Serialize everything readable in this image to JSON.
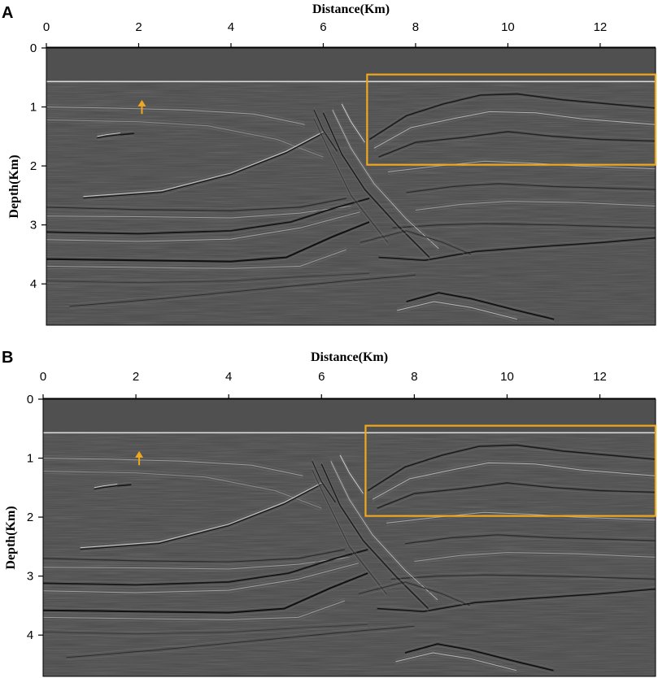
{
  "colors": {
    "highlight": "#f0a81c",
    "section_background": "#4a4a4a",
    "water_background": "#505050"
  },
  "chart_data": [
    {
      "type": "heatmap",
      "panel_label": "A",
      "title": "",
      "xlabel": "Distance(Km)",
      "ylabel": "Depth(Km)",
      "x_axis_position": "top",
      "xlim": [
        0,
        13.2
      ],
      "ylim": [
        4.7,
        0
      ],
      "xticks": [
        0,
        2,
        4,
        6,
        8,
        10,
        12
      ],
      "yticks": [
        0,
        1,
        2,
        3,
        4
      ],
      "colormap": "grayscale seismic amplitude",
      "seafloor_depth": 0.57,
      "highlight_box": {
        "x0": 6.95,
        "x1": 13.2,
        "y0": 0.45,
        "y1": 1.98
      },
      "arrow_annotation": {
        "x": 2.07,
        "y_tip": 0.88,
        "y_tail": 1.12
      }
    },
    {
      "type": "heatmap",
      "panel_label": "B",
      "title": "",
      "xlabel": "Distance(Km)",
      "ylabel": "Depth(Km)",
      "x_axis_position": "top",
      "xlim": [
        0,
        13.2
      ],
      "ylim": [
        4.7,
        0
      ],
      "xticks": [
        0,
        2,
        4,
        6,
        8,
        10,
        12
      ],
      "yticks": [
        0,
        1,
        2,
        3,
        4
      ],
      "colormap": "grayscale seismic amplitude",
      "seafloor_depth": 0.57,
      "highlight_box": {
        "x0": 6.95,
        "x1": 13.2,
        "y0": 0.45,
        "y1": 1.98
      },
      "arrow_annotation": {
        "x": 2.07,
        "y_tip": 0.88,
        "y_tail": 1.12
      }
    }
  ]
}
